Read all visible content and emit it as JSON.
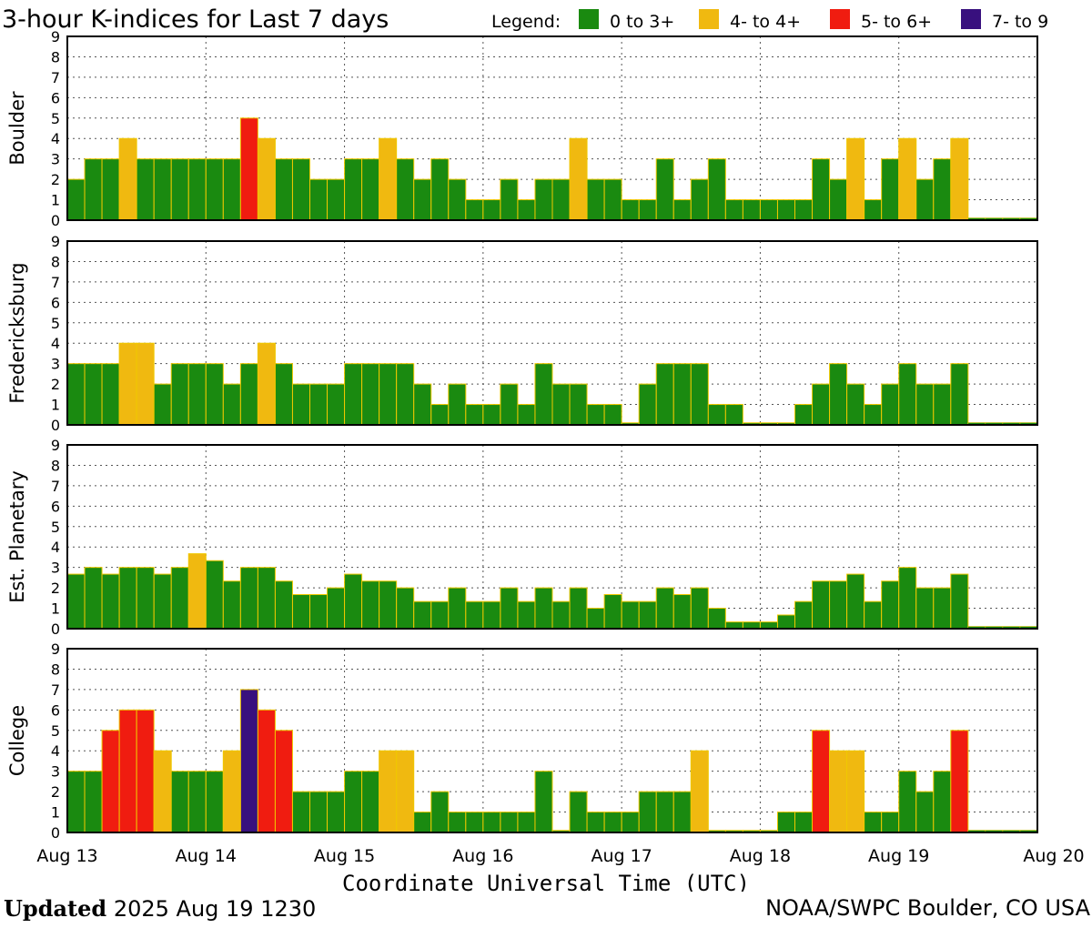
{
  "chart_data": {
    "type": "bar",
    "title": "3-hour K-indices for Last 7 days",
    "legend": {
      "label": "Legend:",
      "placement": "top-right",
      "entries": [
        {
          "label": "0 to 3+",
          "color": "#1a8a10"
        },
        {
          "label": "4- to 4+",
          "color": "#f0b910"
        },
        {
          "label": "5- to 6+",
          "color": "#f01c10"
        },
        {
          "label": "7- to 9",
          "color": "#38107e"
        }
      ]
    },
    "xlabel": "Coordinate Universal Time (UTC)",
    "x_ticks": [
      "Aug 13",
      "Aug 14",
      "Aug 15",
      "Aug 16",
      "Aug 17",
      "Aug 18",
      "Aug 19",
      "Aug 20"
    ],
    "y_ticks": [
      "0",
      "1",
      "2",
      "3",
      "4",
      "5",
      "6",
      "7",
      "8",
      "9"
    ],
    "ylim": [
      0,
      9
    ],
    "grid": true,
    "interval_hours": 3,
    "panels": [
      {
        "ylabel": "Boulder",
        "values": [
          2,
          3,
          3,
          4,
          3,
          3,
          3,
          3,
          3,
          3,
          5,
          4,
          3,
          3,
          2,
          2,
          3,
          3,
          4,
          3,
          2,
          3,
          2,
          1,
          1,
          2,
          1,
          2,
          2,
          4,
          2,
          2,
          1,
          1,
          3,
          1,
          2,
          3,
          1,
          1,
          1,
          1,
          1,
          3,
          2,
          4,
          1,
          3,
          4,
          2,
          3,
          4
        ]
      },
      {
        "ylabel": "Fredericksburg",
        "values": [
          3,
          3,
          3,
          4,
          4,
          2,
          3,
          3,
          3,
          2,
          3,
          4,
          3,
          2,
          2,
          2,
          3,
          3,
          3,
          3,
          2,
          1,
          2,
          1,
          1,
          2,
          1,
          3,
          2,
          2,
          1,
          1,
          0.1,
          2,
          3,
          3,
          3,
          1,
          1,
          0.1,
          0.1,
          0.1,
          1,
          2,
          3,
          2,
          1,
          2,
          3,
          2,
          2,
          3
        ]
      },
      {
        "ylabel": "Est. Planetary",
        "values": [
          2.67,
          3,
          2.67,
          3,
          3,
          2.67,
          3,
          3.67,
          3.33,
          2.33,
          3,
          3,
          2.33,
          1.67,
          1.67,
          2,
          2.67,
          2.33,
          2.33,
          2,
          1.33,
          1.33,
          2,
          1.33,
          1.33,
          2,
          1.33,
          2,
          1.33,
          2,
          1,
          1.67,
          1.33,
          1.33,
          2,
          1.67,
          2,
          1,
          0.33,
          0.33,
          0.33,
          0.67,
          1.33,
          2.33,
          2.33,
          2.67,
          1.33,
          2.33,
          3,
          2,
          2,
          2.67
        ]
      },
      {
        "ylabel": "College",
        "values": [
          3,
          3,
          5,
          6,
          6,
          4,
          3,
          3,
          3,
          4,
          7,
          6,
          5,
          2,
          2,
          2,
          3,
          3,
          4,
          4,
          1,
          2,
          1,
          1,
          1,
          1,
          1,
          3,
          0.1,
          2,
          1,
          1,
          1,
          2,
          2,
          2,
          4,
          0.1,
          0.1,
          0.1,
          0.1,
          1,
          1,
          5,
          4,
          4,
          1,
          1,
          3,
          2,
          3,
          5
        ]
      }
    ]
  },
  "footer": {
    "updated_label": "Updated",
    "updated_value": "2025 Aug 19 1230",
    "source": "NOAA/SWPC Boulder, CO USA"
  }
}
